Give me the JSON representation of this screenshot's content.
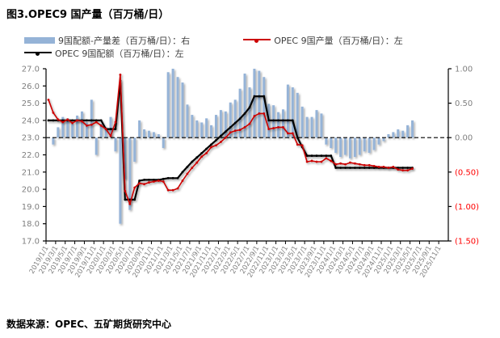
{
  "title": "图3.OPEC9 国产量（百万桶/日）",
  "source": "数据来源：OPEC、五矿期货研究中心",
  "colors": {
    "bar": "#95B3D7",
    "production_line": "#CC0000",
    "quota_line": "#000000",
    "axis": "#000000",
    "axis_text": "#7F7F7F",
    "negative_tick_text": "#FF0000",
    "zero_dashed_line": "#000000",
    "background": "#FFFFFF"
  },
  "legend": {
    "items": [
      {
        "label": "9国配额-产量差（百万桶/日）：右",
        "swatch": "bar"
      },
      {
        "label": "OPEC 9国产量（百万桶/日）：左",
        "swatch": "production_line"
      },
      {
        "label": "OPEC 9国配额（百万桶/日）：左",
        "swatch": "quota_line"
      }
    ]
  },
  "chart_data": {
    "type": "bar+line",
    "title": "图3.OPEC9 国产量（百万桶/日）",
    "left_axis": {
      "min": 17.0,
      "max": 27.0,
      "step": 1.0,
      "ticks": [
        "27.0",
        "26.0",
        "25.0",
        "24.0",
        "23.0",
        "22.0",
        "21.0",
        "20.0",
        "19.0",
        "18.0",
        "17.0"
      ]
    },
    "right_axis": {
      "min": -1.5,
      "max": 1.0,
      "step": 0.5,
      "ticks": [
        {
          "label": "1.00",
          "value": 1.0,
          "negative": false
        },
        {
          "label": "0.50",
          "value": 0.5,
          "negative": false
        },
        {
          "label": "0.00",
          "value": 0.0,
          "negative": false
        },
        {
          "label": "(0.50)",
          "value": -0.5,
          "negative": true
        },
        {
          "label": "(1.00)",
          "value": -1.0,
          "negative": true
        },
        {
          "label": "(1.50)",
          "value": -1.5,
          "negative": true
        }
      ]
    },
    "x_axis": {
      "total_months": 84,
      "tick_labels": [
        "2019/1/1",
        "2019/3/1",
        "2019/5/1",
        "2019/7/1",
        "2019/9/1",
        "2019/11/1",
        "2020/1/1",
        "2020/3/1",
        "2020/5/1",
        "2020/7/1",
        "2020/9/1",
        "2020/11/1",
        "2021/1/1",
        "2021/3/1",
        "2021/5/1",
        "2021/7/1",
        "2021/9/1",
        "2021/11/1",
        "2022/1/1",
        "2022/3/1",
        "2022/5/1",
        "2022/7/1",
        "2022/9/1",
        "2022/11/1",
        "2023/1/1",
        "2023/3/1",
        "2023/5/1",
        "2023/7/1",
        "2023/9/1",
        "2023/11/1",
        "2024/1/1",
        "2024/3/1",
        "2024/5/1",
        "2024/7/1",
        "2024/9/1",
        "2024/11/1",
        "2025/1/1",
        "2025/3/1",
        "2025/5/1",
        "2025/7/1",
        "2025/9/1",
        "2025/11/1"
      ]
    },
    "zero_line_left_value": 23.0,
    "months": [
      "2019/1",
      "2019/2",
      "2019/3",
      "2019/4",
      "2019/5",
      "2019/6",
      "2019/7",
      "2019/8",
      "2019/9",
      "2019/10",
      "2019/11",
      "2019/12",
      "2020/1",
      "2020/2",
      "2020/3",
      "2020/4",
      "2020/5",
      "2020/6",
      "2020/7",
      "2020/8",
      "2020/9",
      "2020/10",
      "2020/11",
      "2020/12",
      "2021/1",
      "2021/2",
      "2021/3",
      "2021/4",
      "2021/5",
      "2021/6",
      "2021/7",
      "2021/8",
      "2021/9",
      "2021/10",
      "2021/11",
      "2021/12",
      "2022/1",
      "2022/2",
      "2022/3",
      "2022/4",
      "2022/5",
      "2022/6",
      "2022/7",
      "2022/8",
      "2022/9",
      "2022/10",
      "2022/11",
      "2022/12",
      "2023/1",
      "2023/2",
      "2023/3",
      "2023/4",
      "2023/5",
      "2023/6",
      "2023/7",
      "2023/8",
      "2023/9",
      "2023/10",
      "2023/11",
      "2023/12",
      "2024/1",
      "2024/2",
      "2024/3",
      "2024/4",
      "2024/5",
      "2024/6",
      "2024/7",
      "2024/8",
      "2024/9",
      "2024/10",
      "2024/11",
      "2024/12",
      "2025/1",
      "2025/2",
      "2025/3",
      "2025/4",
      "2025/5"
    ],
    "series": [
      {
        "name": "9国配额-产量差（百万桶/日）",
        "axis": "right",
        "kind": "bar",
        "values": [
          0,
          -0.1,
          0.15,
          0.3,
          0.28,
          0.2,
          0.32,
          0.38,
          0.22,
          0.55,
          -0.25,
          0.2,
          0.15,
          0.3,
          -0.2,
          -1.25,
          -0.6,
          -1.05,
          -0.35,
          0.25,
          0.12,
          0.1,
          0.08,
          0.05,
          -0.15,
          0.95,
          1.0,
          0.88,
          0.8,
          0.48,
          0.33,
          0.25,
          0.22,
          0.28,
          0.18,
          0.33,
          0.4,
          0.38,
          0.51,
          0.55,
          0.71,
          0.93,
          0.73,
          1.0,
          0.97,
          0.88,
          0.49,
          0.47,
          0.37,
          0.41,
          0.77,
          0.73,
          0.65,
          0.45,
          0.3,
          0.3,
          0.4,
          0.35,
          -0.1,
          -0.15,
          -0.22,
          -0.28,
          -0.25,
          -0.3,
          -0.28,
          -0.25,
          -0.2,
          -0.22,
          -0.18,
          -0.1,
          -0.05,
          0.05,
          0.08,
          0.12,
          0.1,
          0.18,
          0.25
        ]
      },
      {
        "name": "OPEC 9国产量（百万桶/日）",
        "axis": "left",
        "kind": "line",
        "values": [
          25.2,
          24.45,
          24.05,
          23.9,
          24.05,
          23.85,
          24.0,
          23.95,
          23.7,
          23.75,
          23.9,
          23.7,
          23.5,
          23.1,
          23.9,
          26.65,
          19.9,
          19.15,
          20.1,
          20.35,
          20.3,
          20.4,
          20.45,
          20.5,
          20.45,
          19.95,
          19.95,
          20.05,
          20.5,
          20.9,
          21.25,
          21.55,
          21.9,
          22.1,
          22.45,
          22.55,
          22.75,
          23.0,
          23.3,
          23.4,
          23.45,
          23.6,
          23.8,
          24.25,
          24.4,
          24.4,
          23.5,
          23.55,
          23.6,
          23.6,
          23.25,
          23.25,
          22.6,
          22.55,
          21.6,
          21.65,
          21.6,
          21.6,
          21.8,
          21.65,
          21.45,
          21.5,
          21.45,
          21.55,
          21.5,
          21.45,
          21.4,
          21.4,
          21.35,
          21.3,
          21.3,
          21.25,
          21.3,
          21.15,
          21.1,
          21.1,
          21.2
        ]
      },
      {
        "name": "OPEC 9国配额（百万桶/日）",
        "axis": "left",
        "kind": "line",
        "values": [
          24.0,
          24.0,
          24.0,
          24.0,
          24.0,
          24.0,
          24.0,
          24.0,
          24.0,
          24.0,
          24.0,
          24.0,
          23.5,
          23.5,
          23.5,
          26.3,
          19.4,
          19.4,
          19.4,
          20.5,
          20.55,
          20.55,
          20.55,
          20.55,
          20.6,
          20.65,
          20.65,
          20.65,
          21.0,
          21.3,
          21.6,
          21.85,
          22.1,
          22.35,
          22.6,
          22.85,
          23.1,
          23.35,
          23.6,
          23.85,
          24.1,
          24.4,
          24.75,
          25.4,
          25.4,
          25.4,
          24.0,
          24.0,
          24.0,
          24.0,
          24.0,
          24.0,
          23.0,
          22.45,
          21.95,
          21.95,
          21.95,
          21.95,
          21.95,
          21.95,
          21.25,
          21.25,
          21.25,
          21.25,
          21.25,
          21.25,
          21.25,
          21.25,
          21.25,
          21.25,
          21.25,
          21.25,
          21.25,
          21.25,
          21.25,
          21.25,
          21.25
        ]
      }
    ]
  }
}
